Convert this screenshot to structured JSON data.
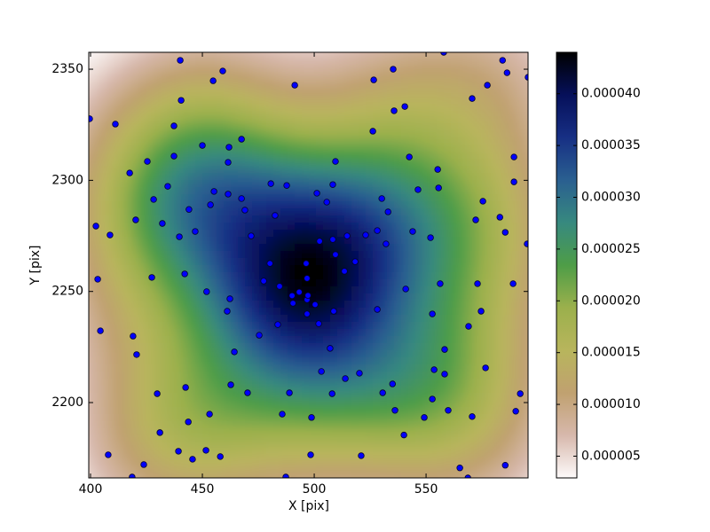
{
  "chart_data": {
    "type": "scatter",
    "x_label": "X [pix]",
    "y_label": "Y [pix]",
    "color": "#0000ff",
    "xlim": [
      399.2,
      595.6
    ],
    "ylim": [
      2166.1,
      2357.6
    ],
    "xticks": [
      400,
      450,
      500,
      550
    ],
    "yticks": [
      2200,
      2250,
      2300,
      2350
    ],
    "x": [
      399.6,
      402.4,
      403.2,
      404.4,
      408.7,
      411.1,
      407.9,
      417.5,
      420.2,
      419.0,
      420.6,
      425.4,
      428.2,
      427.4,
      429.8,
      431.0,
      432.1,
      434.5,
      437.3,
      437.3,
      439.7,
      440.1,
      440.5,
      442.1,
      444.0,
      442.5,
      443.7,
      446.8,
      450.0,
      451.9,
      453.2,
      454.8,
      459.1,
      453.6,
      455.2,
      461.5,
      461.9,
      461.5,
      462.3,
      461.1,
      464.3,
      462.7,
      467.5,
      467.5,
      469.0,
      470.2,
      471.8,
      475.4,
      477.4,
      480.2,
      480.6,
      482.5,
      483.7,
      484.5,
      485.7,
      487.7,
      488.9,
      490.1,
      490.5,
      493.3,
      496.8,
      496.4,
      496.8,
      496.8,
      497.2,
      498.4,
      498.8,
      500.4,
      501.2,
      502.0,
      502.4,
      503.2,
      505.6,
      507.1,
      508.0,
      508.3,
      508.3,
      508.7,
      509.5,
      509.5,
      513.5,
      513.9,
      514.7,
      518.3,
      520.2,
      521.0,
      523.0,
      526.6,
      526.2,
      528.2,
      528.2,
      530.2,
      530.6,
      532.1,
      533.0,
      535.0,
      535.3,
      535.7,
      536.1,
      540.1,
      540.5,
      540.9,
      542.5,
      544.0,
      546.4,
      549.2,
      552.0,
      552.8,
      552.8,
      553.6,
      555.2,
      555.6,
      556.3,
      557.9,
      558.3,
      558.3,
      559.9,
      565.1,
      568.7,
      569.0,
      570.6,
      570.6,
      572.2,
      573.0,
      574.6,
      575.4,
      576.6,
      577.4,
      583.0,
      584.2,
      585.4,
      586.2,
      585.4,
      589.3,
      589.3,
      588.9,
      590.1,
      592.1,
      595.6,
      595.2,
      418.6,
      423.8,
      439.3,
      445.6,
      451.6,
      458.0,
      487.3,
      491.3
    ],
    "y": [
      2327.7,
      2279.4,
      2255.5,
      2232.3,
      2275.4,
      2325.3,
      2176.5,
      2303.3,
      2282.2,
      2229.9,
      2221.6,
      2308.5,
      2291.4,
      2256.3,
      2204.0,
      2186.5,
      2280.6,
      2297.3,
      2324.5,
      2310.9,
      2274.6,
      2354.0,
      2336.0,
      2257.9,
      2286.9,
      2206.8,
      2191.3,
      2277.0,
      2315.7,
      2249.9,
      2194.8,
      2344.8,
      2349.2,
      2289.0,
      2295.0,
      2293.8,
      2314.9,
      2308.1,
      2246.7,
      2241.1,
      2222.8,
      2208.0,
      2318.5,
      2291.8,
      2286.6,
      2204.4,
      2275.0,
      2230.3,
      2254.7,
      2262.6,
      2298.5,
      2284.2,
      2235.1,
      2252.3,
      2194.8,
      2297.7,
      2204.4,
      2248.1,
      2244.7,
      2249.7,
      2246.3,
      2262.6,
      2255.9,
      2239.9,
      2248.2,
      2176.5,
      2193.3,
      2244.1,
      2294.2,
      2235.5,
      2272.6,
      2214.0,
      2290.2,
      2224.4,
      2204.0,
      2273.4,
      2298.1,
      2241.1,
      2266.6,
      2308.5,
      2259.1,
      2210.8,
      2275.0,
      2263.4,
      2213.2,
      2176.1,
      2275.4,
      2345.2,
      2322.1,
      2277.4,
      2241.9,
      2291.8,
      2204.4,
      2271.4,
      2285.8,
      2208.4,
      2350.0,
      2331.3,
      2196.5,
      2185.4,
      2333.2,
      2251.1,
      2310.5,
      2277.0,
      2295.8,
      2193.3,
      2274.2,
      2239.9,
      2201.6,
      2214.8,
      2304.9,
      2296.6,
      2253.5,
      2357.6,
      2223.9,
      2212.8,
      2196.5,
      2170.6,
      2166.1,
      2234.3,
      2193.7,
      2336.8,
      2282.2,
      2253.5,
      2241.1,
      2290.6,
      2215.6,
      2342.8,
      2283.4,
      2354.0,
      2276.6,
      2348.4,
      2171.8,
      2310.5,
      2299.3,
      2253.5,
      2196.1,
      2204.0,
      2346.4,
      2271.4,
      2166.5,
      2172.1,
      2178.1,
      2174.5,
      2178.5,
      2175.7,
      2166.5,
      2342.8
    ],
    "colorbar": {
      "lim": [
        2.9e-06,
        4.4e-05
      ],
      "colormap": [
        "#fdfafa",
        "#d7b8ac",
        "#c0a170",
        "#b8b55c",
        "#9bb04c",
        "#4e9d47",
        "#37897f",
        "#2a5f90",
        "#172f84",
        "#06105a",
        "#000000"
      ],
      "ticks": [
        {
          "value": 5e-06,
          "label": "0.000005"
        },
        {
          "value": 1e-05,
          "label": "0.000010"
        },
        {
          "value": 1.5e-05,
          "label": "0.000015"
        },
        {
          "value": 2e-05,
          "label": "0.000020"
        },
        {
          "value": 2.5e-05,
          "label": "0.000025"
        },
        {
          "value": 3e-05,
          "label": "0.000030"
        },
        {
          "value": 3.5e-05,
          "label": "0.000035"
        },
        {
          "value": 4e-05,
          "label": "0.000040"
        }
      ]
    }
  }
}
